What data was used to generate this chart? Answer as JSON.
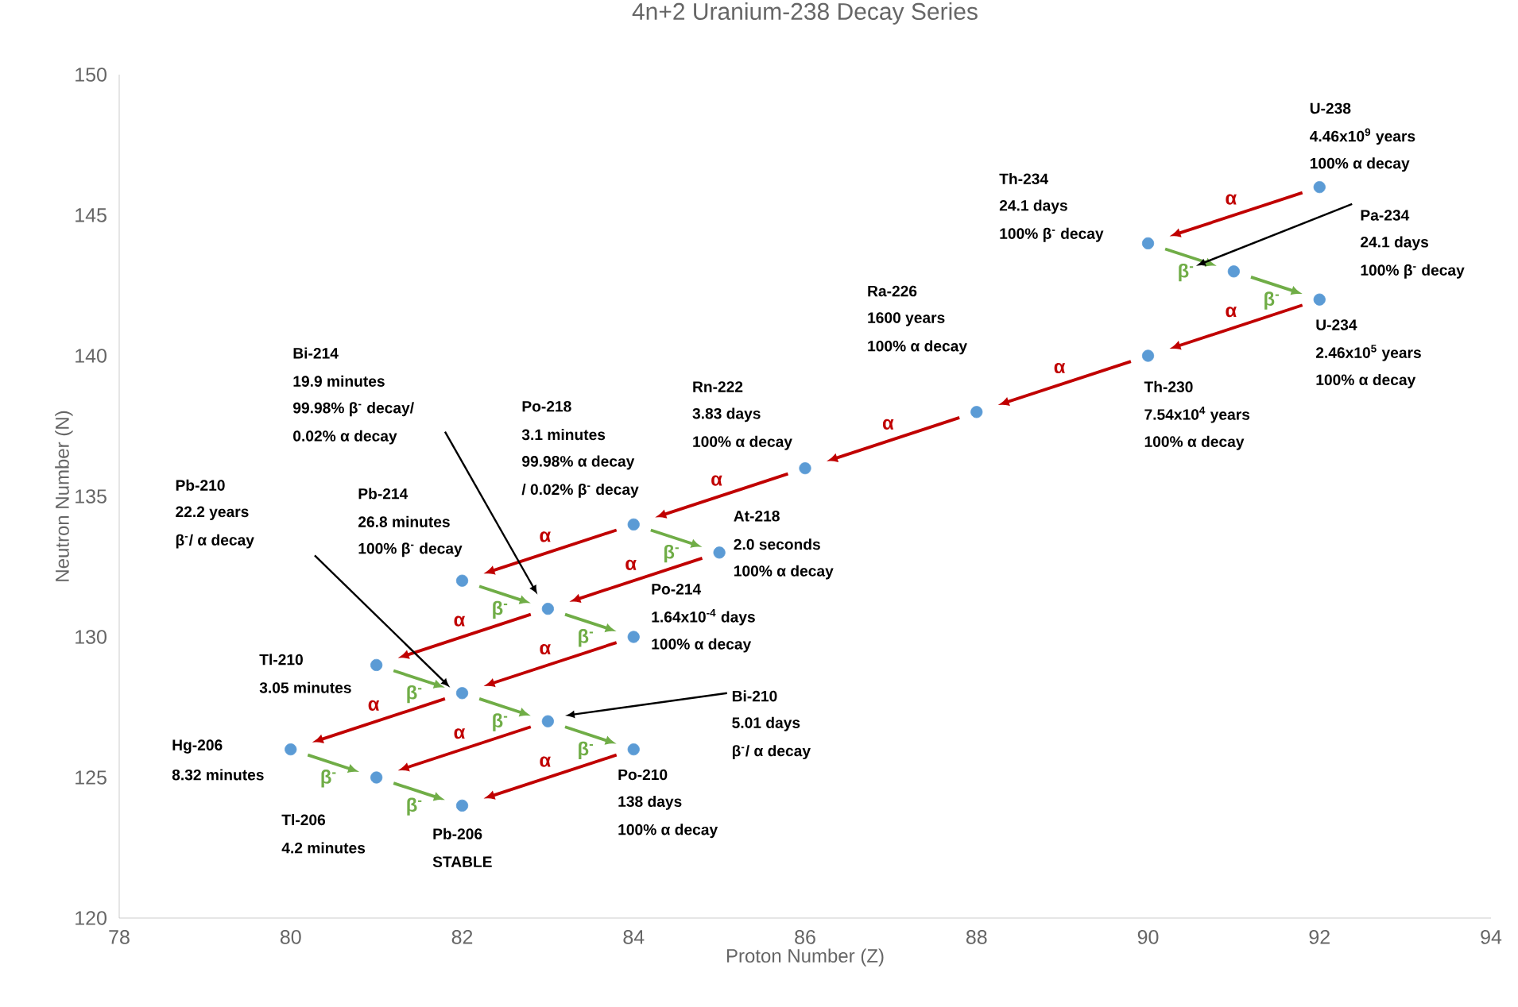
{
  "chart_data": {
    "type": "scatter",
    "title": "4n+2 Uranium-238 Decay Series",
    "xlabel": "Proton Number (Z)",
    "ylabel": "Neutron Number (N)",
    "xlim": [
      78,
      94
    ],
    "ylim": [
      120,
      150
    ],
    "xticks": [
      78,
      80,
      82,
      84,
      86,
      88,
      90,
      92,
      94
    ],
    "yticks": [
      120,
      125,
      130,
      135,
      140,
      145,
      150
    ],
    "series": [
      {
        "color": "#5b9bd5",
        "x": [
          92,
          90,
          91,
          92,
          90,
          88,
          86,
          84,
          85,
          82,
          83,
          84,
          81,
          82,
          83,
          84,
          80,
          81,
          82
        ],
        "values": [
          146,
          144,
          143,
          142,
          140,
          138,
          136,
          134,
          133,
          132,
          131,
          130,
          129,
          128,
          127,
          126,
          126,
          125,
          124
        ]
      }
    ],
    "annotations": [
      "α",
      "α",
      "α",
      "α",
      "α",
      "α",
      "α",
      "α",
      "α",
      "α",
      "α",
      "α",
      "β$^{-}$",
      "β$^{-}$",
      "β$^{-}$",
      "β$^{-}$",
      "β$^{-}$",
      "β$^{-}$",
      "β$^{-}$",
      "β$^{-}$",
      "β$^{-}$",
      "β$^{-}$",
      "U-238",
      "4.46x10$^{9}$ years",
      "100% α decay",
      "Th-234",
      "24.1 days",
      "100% β$^{-}$ decay",
      "Pa-234",
      "24.1 days",
      "100% β$^{-}$ decay",
      "U-234",
      "2.46x10$^{5}$ years",
      "100% α decay",
      "Th-230",
      "7.54x10$^{4}$ years",
      "100% α decay",
      "Ra-226",
      "1600 years",
      "100% α decay",
      "Rn-222",
      "3.83 days",
      "100% α decay",
      "Po-218",
      "3.1 minutes",
      "99.98% α decay",
      "/ 0.02% β$^{-}$ decay",
      "Bi-214",
      "19.9 minutes",
      "99.98% β$^{-}$ decay/",
      "0.02% α decay",
      "Pb-214",
      "26.8 minutes",
      "100% β$^{-}$ decay",
      "Pb-210",
      "22.2 years",
      "β$^{-}$/ α decay",
      "At-218",
      "2.0 seconds",
      "100% α decay",
      "Po-214",
      "1.64x10$^{-4}$ days",
      "100% α decay",
      "Tl-210",
      "3.05 minutes",
      "Bi-210",
      "5.01 days",
      "β$^{-}$/ α decay",
      "Hg-206",
      "8.32 minutes",
      "Po-210",
      "138 days",
      "100% α decay",
      "Tl-206",
      "4.2 minutes",
      "Pb-206",
      "STABLE"
    ]
  }
}
